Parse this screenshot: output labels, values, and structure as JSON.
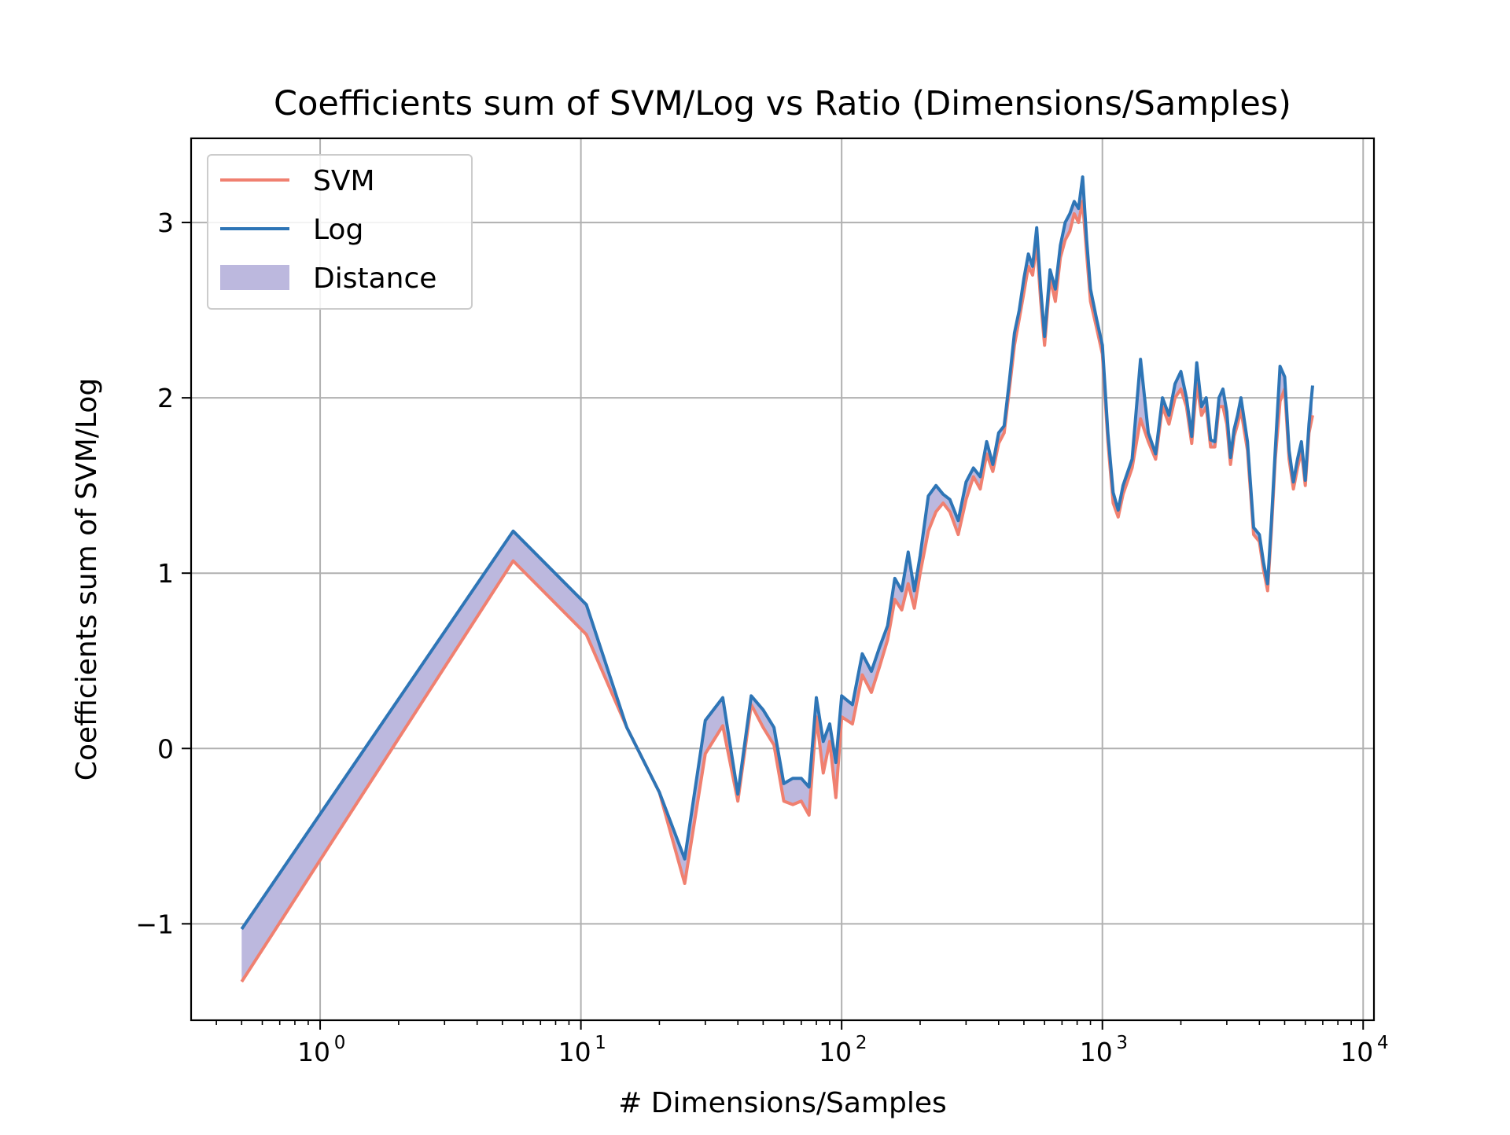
{
  "chart_data": {
    "type": "line",
    "title": "Coefficients sum of SVM/Log vs Ratio (Dimensions/Samples)",
    "xlabel": "# Dimensions/Samples",
    "ylabel": "Coefficients sum of SVM/Log",
    "x_scale": "log",
    "xlim": [
      0.32,
      11000
    ],
    "ylim": [
      -1.55,
      3.48
    ],
    "grid": true,
    "legend_position": "top-left",
    "x_ticks": [
      {
        "value": 1,
        "label": "10",
        "exp": "0"
      },
      {
        "value": 10,
        "label": "10",
        "exp": "1"
      },
      {
        "value": 100,
        "label": "10",
        "exp": "2"
      },
      {
        "value": 1000,
        "label": "10",
        "exp": "3"
      },
      {
        "value": 10000,
        "label": "10",
        "exp": "4"
      }
    ],
    "y_ticks": [
      {
        "value": -1,
        "label": "−1"
      },
      {
        "value": 0,
        "label": "0"
      },
      {
        "value": 1,
        "label": "1"
      },
      {
        "value": 2,
        "label": "2"
      },
      {
        "value": 3,
        "label": "3"
      }
    ],
    "x": [
      0.5,
      5.5,
      10.5,
      15,
      20,
      25,
      30,
      35,
      40,
      45,
      50,
      55,
      60,
      65,
      70,
      75,
      80,
      85,
      90,
      95,
      100,
      110,
      120,
      130,
      140,
      150,
      160,
      170,
      180,
      190,
      200,
      215,
      230,
      245,
      260,
      280,
      300,
      320,
      340,
      360,
      380,
      400,
      420,
      440,
      460,
      480,
      500,
      520,
      540,
      560,
      580,
      600,
      630,
      660,
      690,
      720,
      750,
      780,
      810,
      840,
      870,
      900,
      950,
      1000,
      1050,
      1100,
      1150,
      1200,
      1300,
      1400,
      1500,
      1600,
      1700,
      1800,
      1900,
      2000,
      2100,
      2200,
      2300,
      2400,
      2500,
      2600,
      2700,
      2800,
      2900,
      3000,
      3100,
      3200,
      3300,
      3400,
      3600,
      3800,
      4000,
      4150,
      4300,
      4450,
      4600,
      4800,
      5000,
      5200,
      5400,
      5600,
      5800,
      6000,
      6200,
      6400
    ],
    "series": [
      {
        "name": "SVM",
        "color": "#f08070",
        "values": [
          -1.33,
          1.07,
          0.65,
          0.12,
          -0.25,
          -0.77,
          -0.03,
          0.13,
          -0.3,
          0.25,
          0.12,
          0.02,
          -0.3,
          -0.32,
          -0.3,
          -0.38,
          0.18,
          -0.14,
          0.04,
          -0.28,
          0.18,
          0.14,
          0.42,
          0.32,
          0.47,
          0.62,
          0.85,
          0.79,
          0.94,
          0.8,
          1.0,
          1.24,
          1.35,
          1.4,
          1.35,
          1.22,
          1.42,
          1.55,
          1.48,
          1.68,
          1.58,
          1.74,
          1.8,
          2.05,
          2.3,
          2.45,
          2.6,
          2.75,
          2.7,
          2.88,
          2.55,
          2.3,
          2.68,
          2.55,
          2.8,
          2.9,
          2.95,
          3.05,
          3.0,
          3.12,
          2.82,
          2.55,
          2.4,
          2.25,
          1.75,
          1.4,
          1.32,
          1.45,
          1.6,
          1.88,
          1.75,
          1.65,
          1.95,
          1.85,
          2.0,
          2.05,
          1.95,
          1.74,
          2.08,
          1.9,
          1.95,
          1.72,
          1.72,
          1.95,
          1.95,
          1.85,
          1.62,
          1.78,
          1.85,
          1.93,
          1.7,
          1.22,
          1.18,
          1.02,
          0.9,
          1.25,
          1.65,
          1.98,
          2.05,
          1.65,
          1.48,
          1.6,
          1.7,
          1.5,
          1.8,
          1.9
        ]
      },
      {
        "name": "Log",
        "color": "#2e75b6",
        "values": [
          -1.03,
          1.24,
          0.82,
          0.12,
          -0.25,
          -0.63,
          0.16,
          0.29,
          -0.26,
          0.3,
          0.22,
          0.12,
          -0.2,
          -0.17,
          -0.17,
          -0.22,
          0.29,
          0.04,
          0.14,
          -0.08,
          0.3,
          0.25,
          0.54,
          0.44,
          0.58,
          0.7,
          0.97,
          0.9,
          1.12,
          0.9,
          1.1,
          1.44,
          1.5,
          1.45,
          1.42,
          1.3,
          1.52,
          1.6,
          1.55,
          1.75,
          1.62,
          1.8,
          1.84,
          2.1,
          2.37,
          2.5,
          2.68,
          2.82,
          2.75,
          2.97,
          2.62,
          2.35,
          2.73,
          2.62,
          2.87,
          3.0,
          3.05,
          3.12,
          3.08,
          3.26,
          2.9,
          2.62,
          2.45,
          2.3,
          1.8,
          1.46,
          1.36,
          1.5,
          1.65,
          2.22,
          1.8,
          1.68,
          2.0,
          1.9,
          2.08,
          2.15,
          2.0,
          1.78,
          2.2,
          1.95,
          2.0,
          1.76,
          1.75,
          2.0,
          2.05,
          1.92,
          1.66,
          1.82,
          1.9,
          2.0,
          1.75,
          1.26,
          1.22,
          1.06,
          0.94,
          1.3,
          1.7,
          2.18,
          2.12,
          1.7,
          1.52,
          1.65,
          1.75,
          1.53,
          1.85,
          2.07
        ]
      }
    ],
    "fill_between": {
      "name": "Distance",
      "color": "#bcb8de"
    },
    "legend": [
      {
        "label": "SVM",
        "kind": "line",
        "color": "#f08070"
      },
      {
        "label": "Log",
        "kind": "line",
        "color": "#2e75b6"
      },
      {
        "label": "Distance",
        "kind": "patch",
        "color": "#bcb8de"
      }
    ]
  }
}
